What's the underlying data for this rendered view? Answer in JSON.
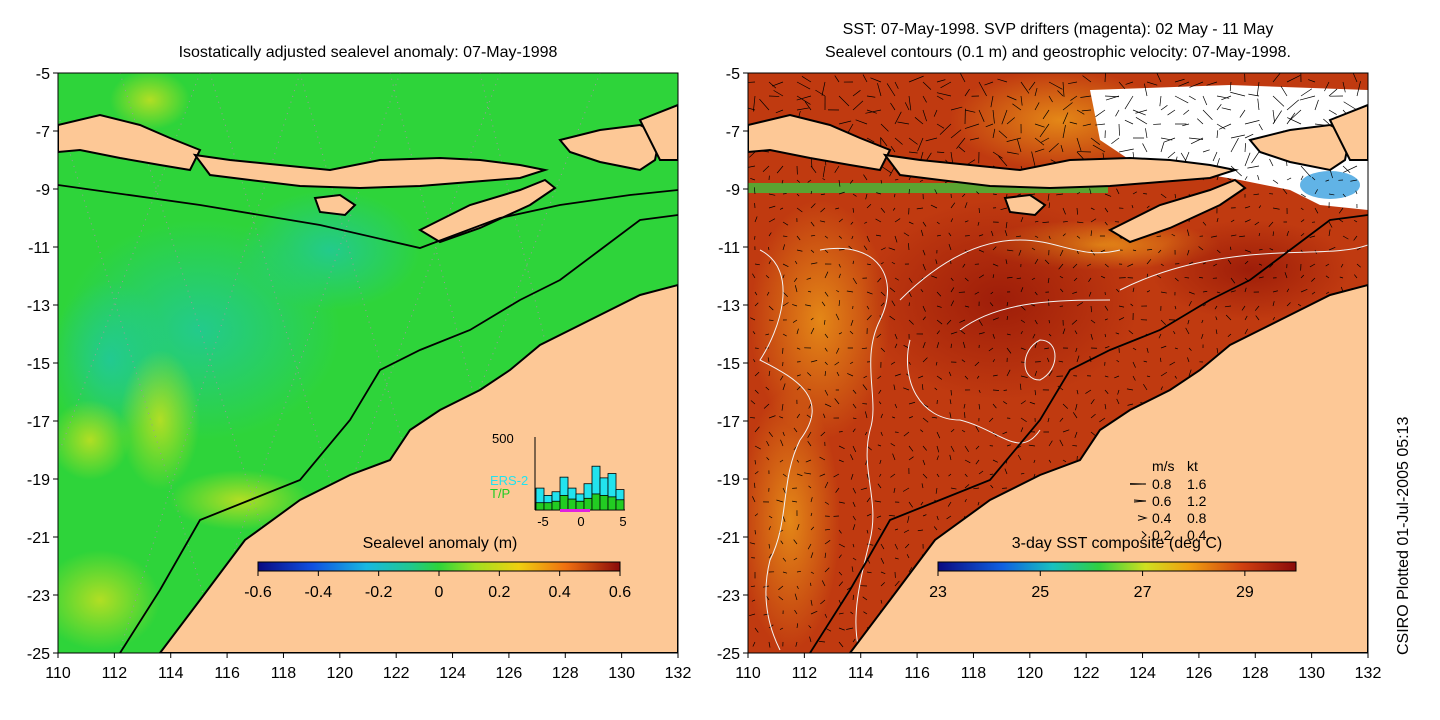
{
  "left_panel": {
    "title": "Isostatically adjusted sealevel anomaly: 07-May-1998",
    "x_ticks": [
      "110",
      "112",
      "114",
      "116",
      "118",
      "120",
      "122",
      "124",
      "126",
      "128",
      "130",
      "132"
    ],
    "y_ticks": [
      "-5",
      "-7",
      "-9",
      "-11",
      "-13",
      "-15",
      "-17",
      "-19",
      "-21",
      "-23",
      "-25"
    ],
    "colorbar": {
      "label": "Sealevel anomaly (m)",
      "ticks": [
        "-0.6",
        "-0.4",
        "-0.2",
        "0",
        "0.2",
        "0.4",
        "0.6"
      ],
      "min": -0.6,
      "max": 0.6
    },
    "histogram": {
      "y_max_label": "500",
      "x_ticks": [
        "-5",
        "0",
        "5"
      ],
      "legend_ers": "ERS-2",
      "legend_tp": "T/P",
      "ers_color": "#22e3ee",
      "tp_color": "#22cc22",
      "ers_values": [
        0.3,
        0.2,
        0.25,
        0.45,
        0.3,
        0.22,
        0.36,
        0.6,
        0.44,
        0.5,
        0.28
      ],
      "tp_values": [
        0.1,
        0.1,
        0.12,
        0.2,
        0.15,
        0.12,
        0.16,
        0.22,
        0.2,
        0.18,
        0.14
      ]
    }
  },
  "right_panel": {
    "title_line1": "SST: 07-May-1998. SVP drifters (magenta): 02 May - 11 May",
    "title_line2": "Sealevel contours (0.1 m) and geostrophic velocity: 07-May-1998.",
    "x_ticks": [
      "110",
      "112",
      "114",
      "116",
      "118",
      "120",
      "122",
      "124",
      "126",
      "128",
      "130",
      "132"
    ],
    "y_ticks": [
      "-5",
      "-7",
      "-9",
      "-11",
      "-13",
      "-15",
      "-17",
      "-19",
      "-21",
      "-23",
      "-25"
    ],
    "colorbar": {
      "label": "3-day SST composite (deg C)",
      "ticks": [
        "23",
        "25",
        "27",
        "29"
      ],
      "min": 23,
      "max": 30
    },
    "velocity_legend": {
      "header_ms": "m/s",
      "header_kt": "kt",
      "rows": [
        {
          "ms": "0.8",
          "kt": "1.6"
        },
        {
          "ms": "0.6",
          "kt": "1.2"
        },
        {
          "ms": "0.4",
          "kt": "0.8"
        },
        {
          "ms": "0.2",
          "kt": "0.4"
        }
      ]
    }
  },
  "credit": "CSIRO Plotted 01-Jul-2005 05:13",
  "colors": {
    "land": "#fdc896",
    "ocean_left": "#2ed43a",
    "ocean_right": "#c03a10"
  }
}
